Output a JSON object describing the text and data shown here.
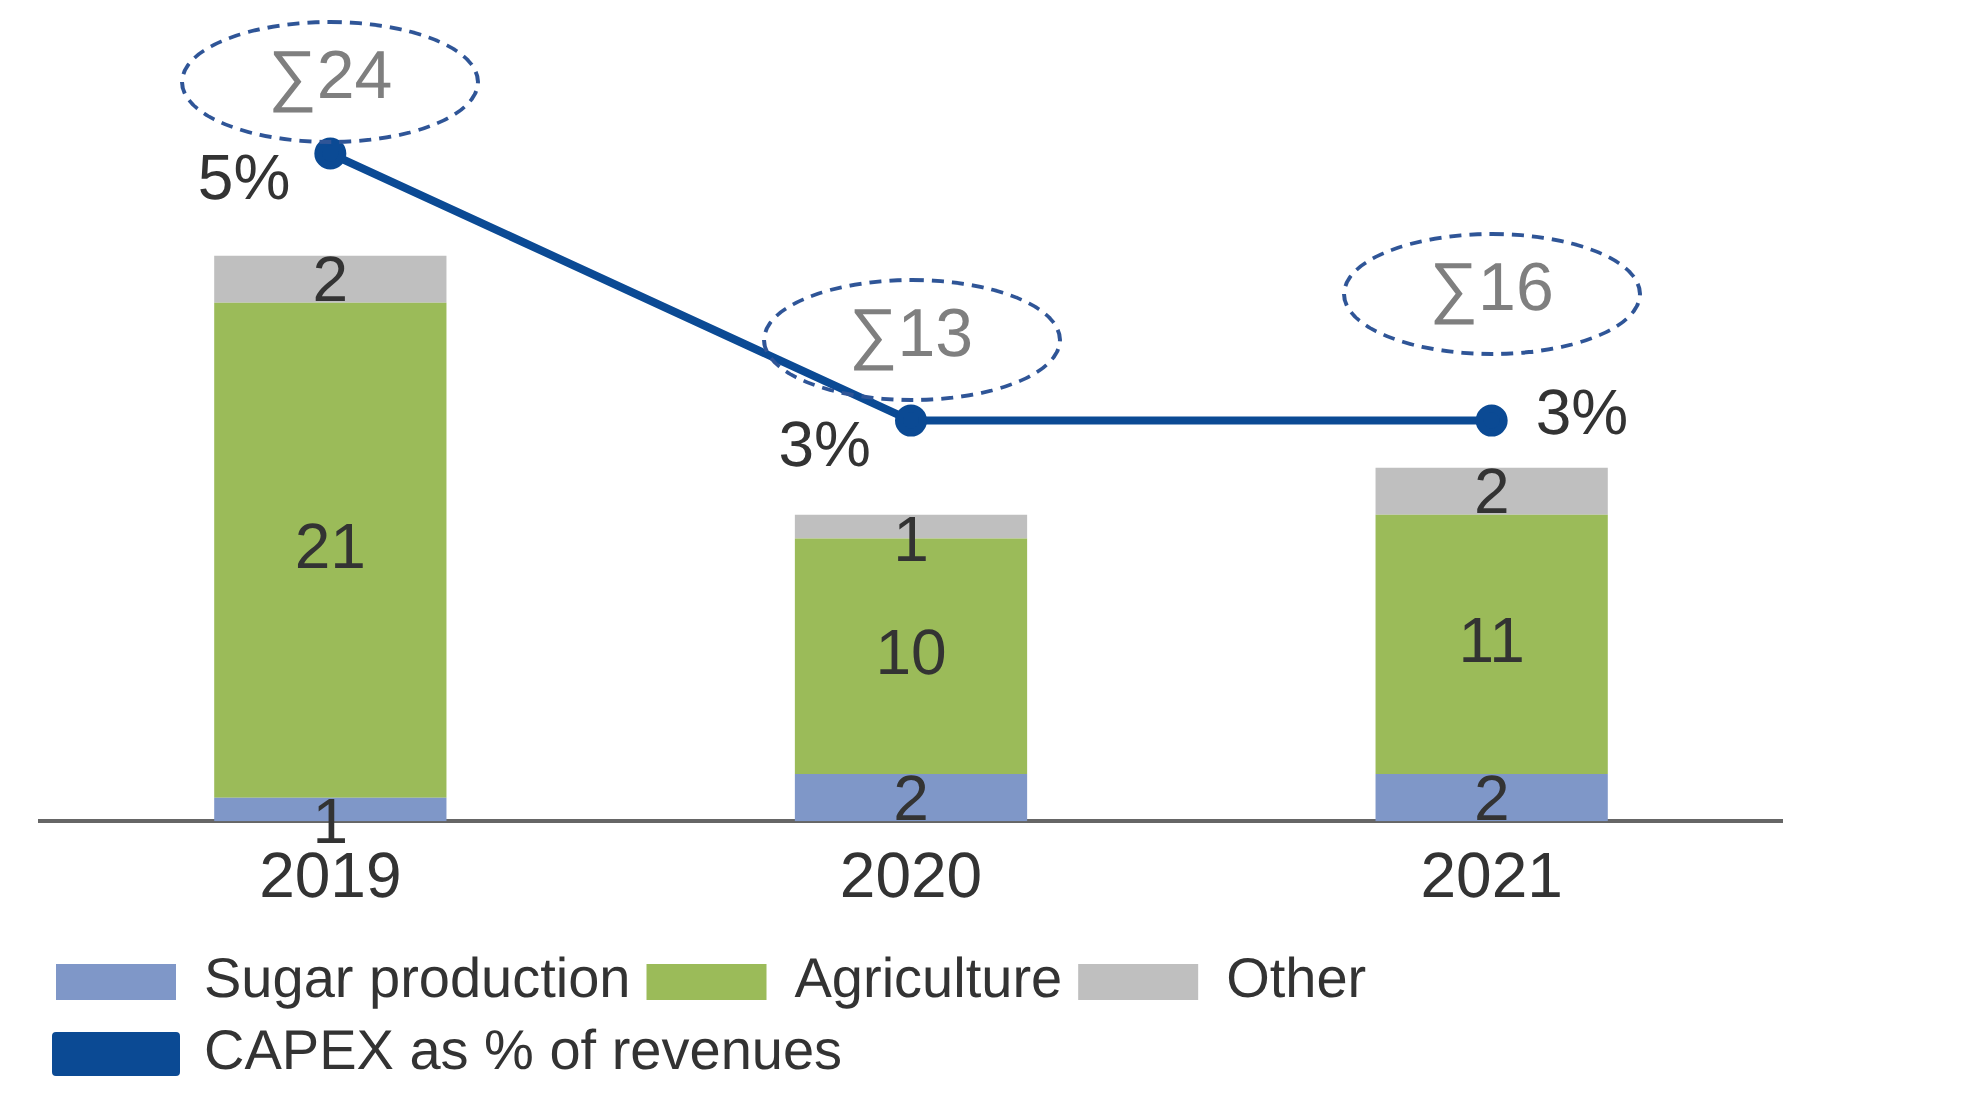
{
  "chart_data": {
    "type": "bar",
    "stacked": true,
    "categories": [
      "2019",
      "2020",
      "2021"
    ],
    "series": [
      {
        "name": "Sugar production",
        "color": "#7f97c8",
        "values": [
          1,
          2,
          2
        ]
      },
      {
        "name": "Agriculture",
        "color": "#9bbb59",
        "values": [
          21,
          10,
          11
        ]
      },
      {
        "name": "Other",
        "color": "#bfbfbf",
        "values": [
          2,
          1,
          2
        ]
      },
      {
        "name": "CAPEX as % of revenues",
        "type": "line",
        "axis": "y2",
        "color": "#0b4a94",
        "values": [
          5,
          3,
          3
        ],
        "value_labels": [
          "5%",
          "3%",
          "3%"
        ],
        "marker": "circle"
      }
    ],
    "ylim": [
      0,
      34
    ],
    "tick_labels": "x",
    "data_labels": true,
    "totals": [
      "∑24",
      "∑13",
      "∑16"
    ],
    "legend": "bottom",
    "grid": false
  }
}
